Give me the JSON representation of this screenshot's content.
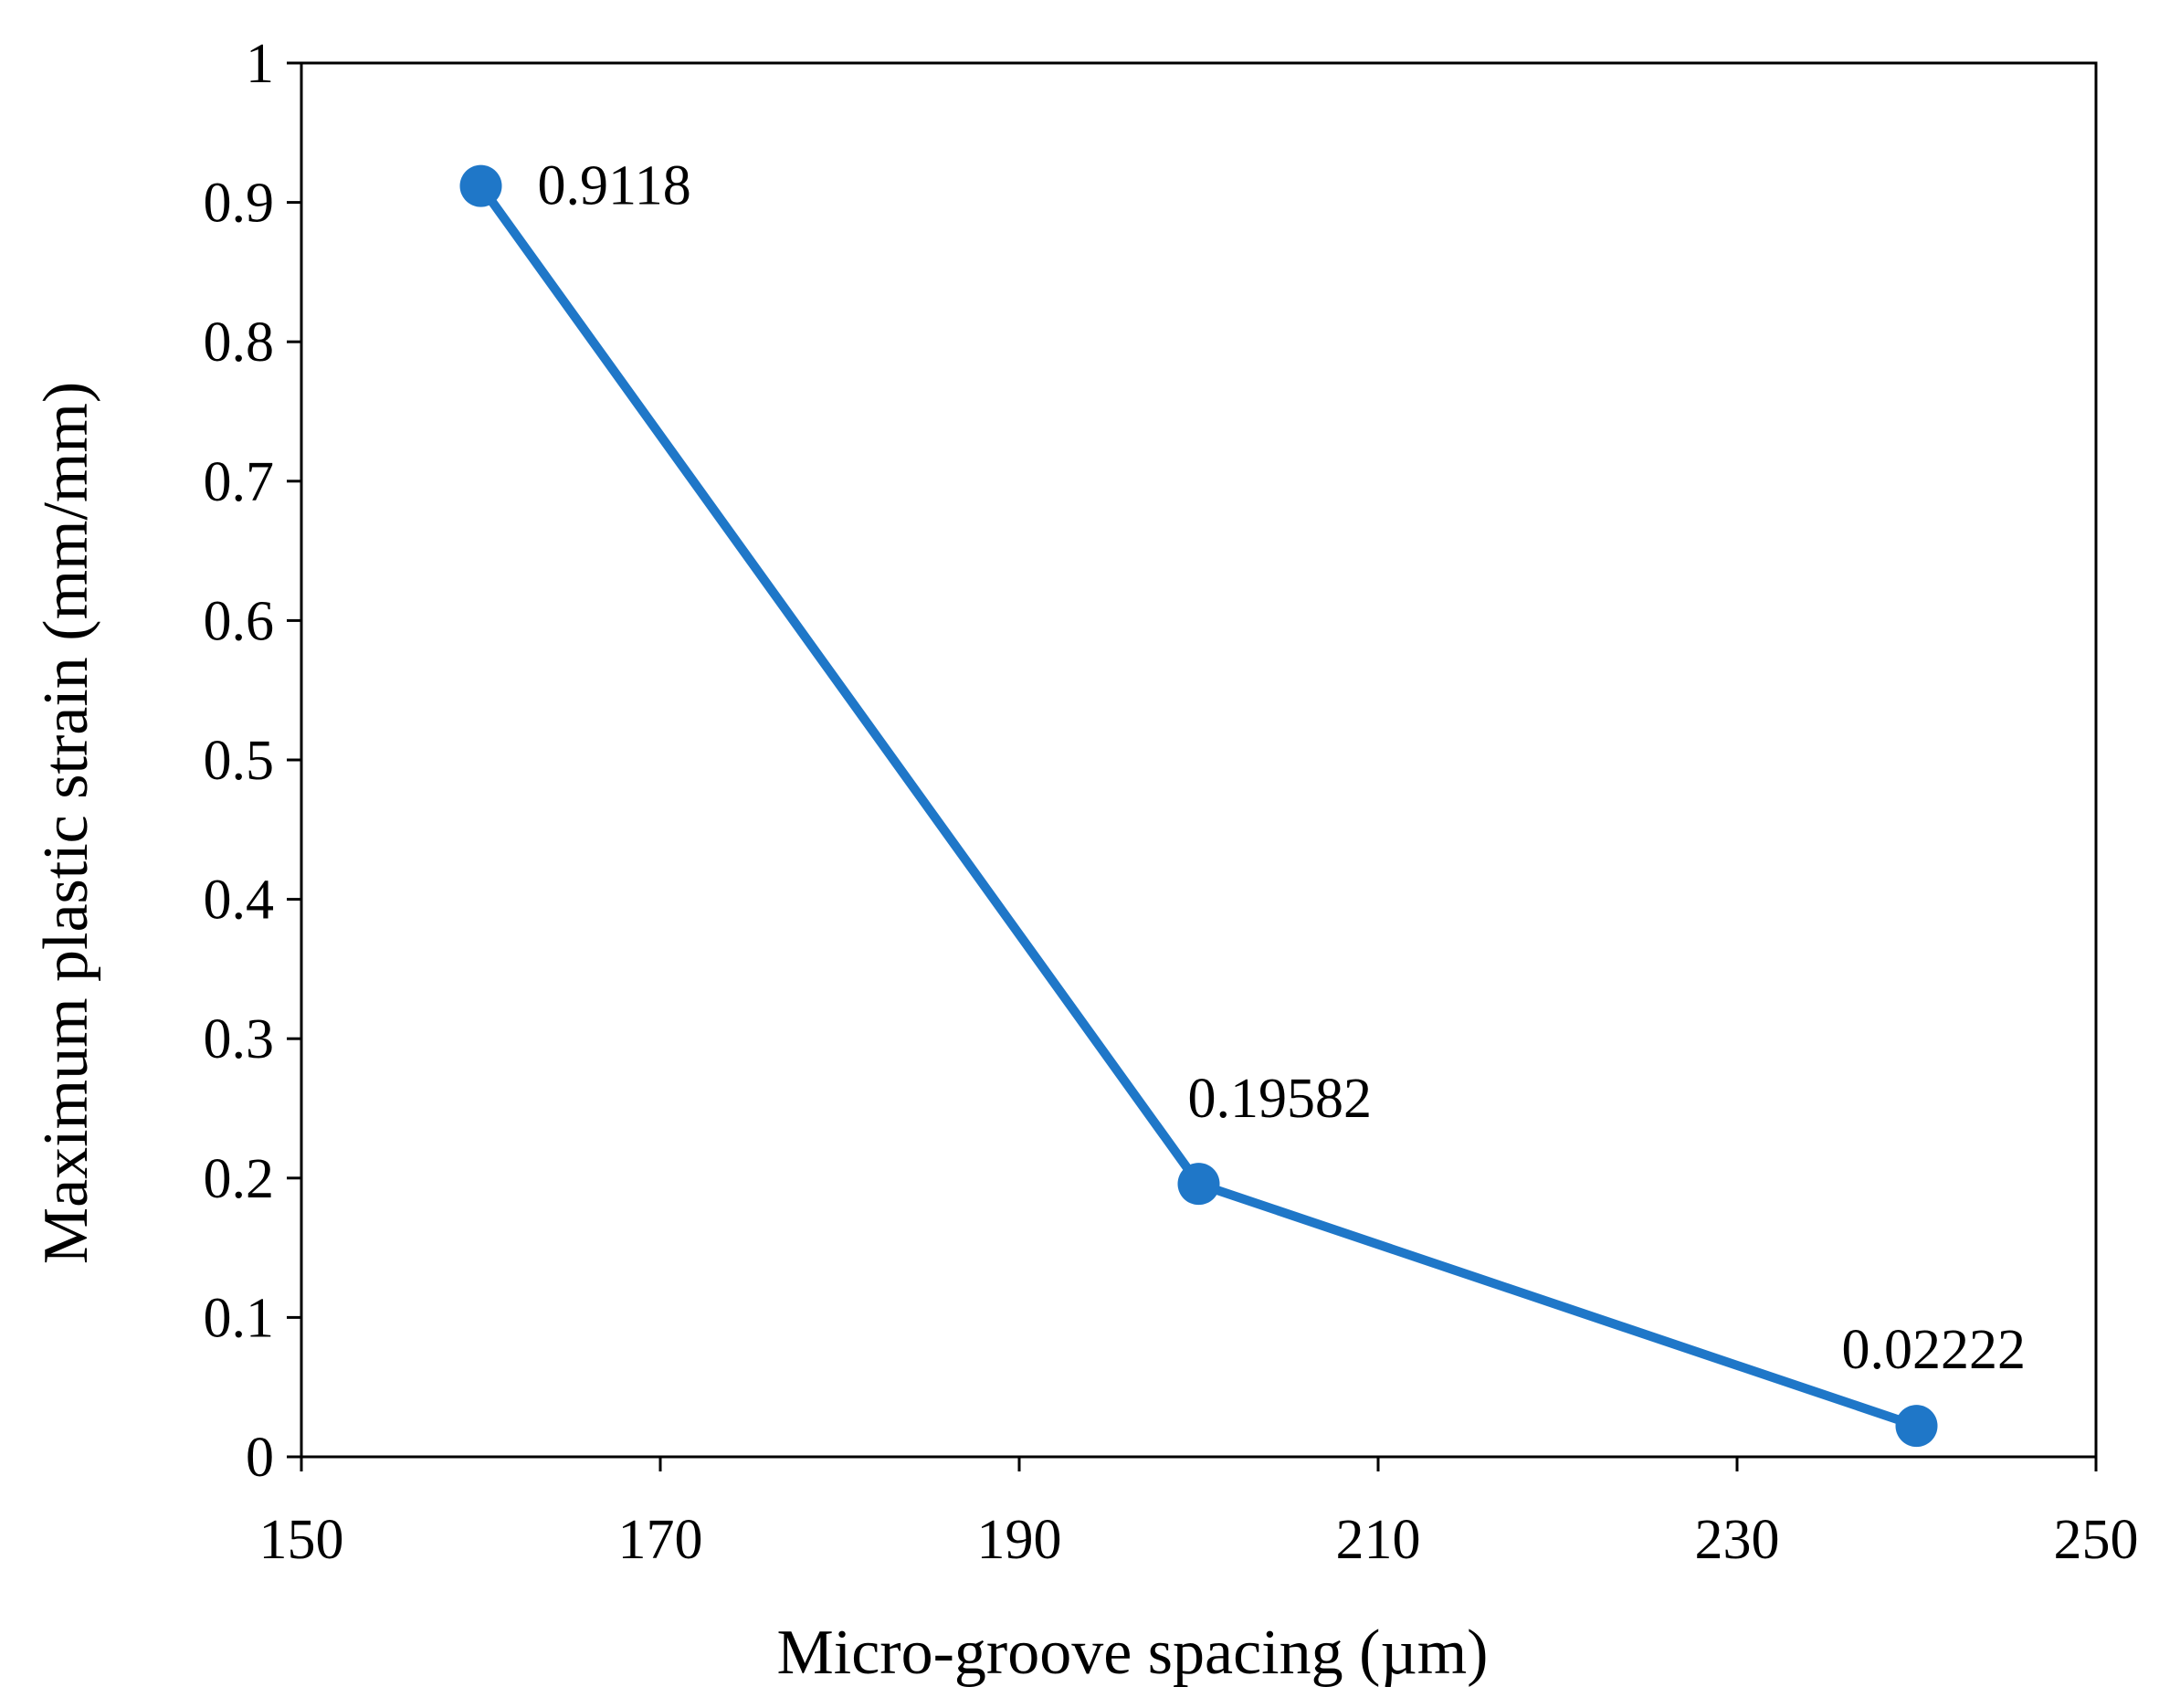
{
  "chart_data": {
    "type": "line",
    "title": "",
    "xlabel": "Micro-groove spacing (µm)",
    "ylabel": "Maximum plastic strain (mm/mm)",
    "xlim": [
      150,
      250
    ],
    "ylim": [
      0,
      1
    ],
    "x_ticks": [
      "150",
      "170",
      "190",
      "210",
      "230",
      "250"
    ],
    "y_ticks": [
      "0",
      "0.1",
      "0.2",
      "0.3",
      "0.4",
      "0.5",
      "0.6",
      "0.7",
      "0.8",
      "0.9",
      "1"
    ],
    "grid": false,
    "legend": "none",
    "series": [
      {
        "color": "#1f77c8",
        "x": [
          160,
          200,
          240
        ],
        "y": [
          0.9118,
          0.19582,
          0.02222
        ],
        "data_labels": [
          "0.9118",
          "0.19582",
          "0.02222"
        ]
      }
    ]
  }
}
